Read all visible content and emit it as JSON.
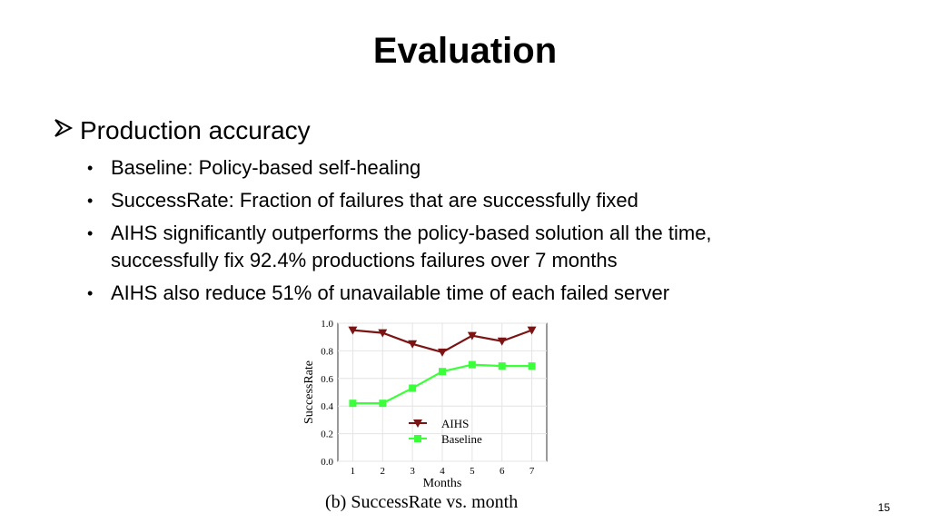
{
  "slide": {
    "title": "Evaluation",
    "main_bullet_icon": "arrow-bullet-icon",
    "main_bullet": "Production accuracy",
    "sub_bullets": [
      "Baseline: Policy-based self-healing",
      "SuccessRate: Fraction of failures that are successfully fixed",
      "AIHS significantly outperforms the policy-based solution all the time, successfully fix 92.4% productions failures over 7 months",
      "AIHS also reduce 51% of unavailable time of each failed server"
    ],
    "caption": "(b) SuccessRate vs. month",
    "page_number": "15"
  },
  "chart_data": {
    "type": "line",
    "x": [
      1,
      2,
      3,
      4,
      5,
      6,
      7
    ],
    "xlabel": "Months",
    "ylabel": "SuccessRate",
    "xlim": [
      0.5,
      7.5
    ],
    "ylim": [
      0.0,
      1.0
    ],
    "y_ticks": [
      "0.0",
      "0.2",
      "0.4",
      "0.6",
      "0.8",
      "1.0"
    ],
    "x_ticks": [
      "1",
      "2",
      "3",
      "4",
      "5",
      "6",
      "7"
    ],
    "grid": true,
    "legend_placement": "bottom-center",
    "series": [
      {
        "name": "AIHS",
        "marker": "triangle-down",
        "color": "#7b1414",
        "values": [
          0.95,
          0.93,
          0.85,
          0.79,
          0.91,
          0.87,
          0.95
        ]
      },
      {
        "name": "Baseline",
        "marker": "square",
        "color": "#3cff3c",
        "values": [
          0.42,
          0.42,
          0.53,
          0.65,
          0.7,
          0.69,
          0.69
        ]
      }
    ]
  }
}
